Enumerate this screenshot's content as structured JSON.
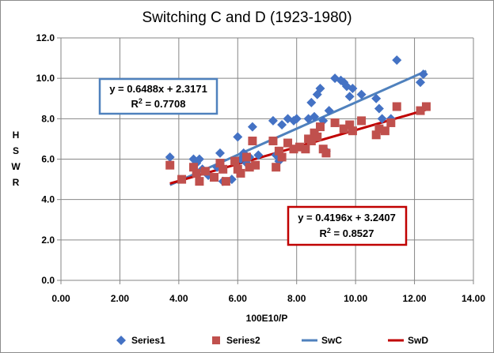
{
  "chart_data": {
    "type": "scatter",
    "title": "Switching C and D (1923-1980)",
    "xlabel": "100E10/P",
    "ylabel": "HSWR",
    "xlim": [
      0,
      14
    ],
    "ylim": [
      0,
      12
    ],
    "xticks": [
      "0.00",
      "2.00",
      "4.00",
      "6.00",
      "8.00",
      "10.00",
      "12.00",
      "14.00"
    ],
    "yticks": [
      "0.0",
      "2.0",
      "4.0",
      "6.0",
      "8.0",
      "10.0",
      "12.0"
    ],
    "grid": true,
    "legend_position": "bottom",
    "series": [
      {
        "name": "Series1",
        "marker": "diamond",
        "color": "#4472C4",
        "points": [
          [
            3.7,
            6.1
          ],
          [
            4.5,
            6.0
          ],
          [
            4.6,
            5.8
          ],
          [
            4.7,
            6.0
          ],
          [
            4.8,
            5.5
          ],
          [
            5.0,
            5.2
          ],
          [
            5.3,
            5.6
          ],
          [
            5.4,
            6.3
          ],
          [
            5.5,
            4.9
          ],
          [
            5.8,
            5.0
          ],
          [
            6.0,
            7.1
          ],
          [
            6.1,
            6.0
          ],
          [
            6.2,
            6.3
          ],
          [
            6.3,
            5.8
          ],
          [
            6.4,
            6.1
          ],
          [
            6.5,
            7.6
          ],
          [
            6.7,
            6.2
          ],
          [
            7.2,
            7.9
          ],
          [
            7.3,
            6.2
          ],
          [
            7.4,
            5.9
          ],
          [
            7.5,
            7.7
          ],
          [
            7.7,
            8.0
          ],
          [
            7.9,
            7.9
          ],
          [
            8.0,
            8.0
          ],
          [
            8.4,
            8.0
          ],
          [
            8.5,
            8.8
          ],
          [
            8.6,
            8.1
          ],
          [
            8.7,
            9.2
          ],
          [
            8.8,
            9.5
          ],
          [
            8.9,
            7.9
          ],
          [
            9.0,
            6.4
          ],
          [
            9.1,
            8.4
          ],
          [
            9.3,
            10.0
          ],
          [
            9.5,
            9.9
          ],
          [
            9.6,
            9.8
          ],
          [
            9.7,
            9.6
          ],
          [
            9.8,
            9.1
          ],
          [
            9.9,
            9.5
          ],
          [
            10.2,
            9.2
          ],
          [
            10.7,
            9.0
          ],
          [
            10.8,
            8.5
          ],
          [
            10.9,
            8.0
          ],
          [
            11.2,
            8.0
          ],
          [
            11.4,
            10.9
          ],
          [
            12.2,
            9.8
          ],
          [
            12.3,
            10.2
          ]
        ]
      },
      {
        "name": "Series2",
        "marker": "square",
        "color": "#C0504D",
        "points": [
          [
            3.7,
            5.7
          ],
          [
            4.1,
            5.0
          ],
          [
            4.5,
            5.6
          ],
          [
            4.6,
            5.3
          ],
          [
            4.7,
            4.9
          ],
          [
            4.9,
            5.4
          ],
          [
            5.2,
            5.1
          ],
          [
            5.4,
            5.8
          ],
          [
            5.5,
            5.5
          ],
          [
            5.6,
            4.9
          ],
          [
            5.9,
            5.9
          ],
          [
            6.0,
            5.5
          ],
          [
            6.1,
            5.3
          ],
          [
            6.3,
            6.1
          ],
          [
            6.4,
            5.6
          ],
          [
            6.5,
            6.9
          ],
          [
            6.6,
            5.7
          ],
          [
            7.2,
            6.9
          ],
          [
            7.3,
            5.6
          ],
          [
            7.4,
            6.4
          ],
          [
            7.5,
            6.1
          ],
          [
            7.7,
            6.8
          ],
          [
            7.9,
            6.5
          ],
          [
            8.1,
            6.6
          ],
          [
            8.3,
            6.5
          ],
          [
            8.4,
            7.0
          ],
          [
            8.5,
            6.9
          ],
          [
            8.6,
            7.3
          ],
          [
            8.7,
            7.1
          ],
          [
            8.8,
            7.6
          ],
          [
            8.9,
            6.5
          ],
          [
            9.0,
            6.3
          ],
          [
            9.3,
            7.8
          ],
          [
            9.6,
            7.5
          ],
          [
            9.8,
            7.7
          ],
          [
            9.9,
            7.4
          ],
          [
            10.2,
            7.9
          ],
          [
            10.7,
            7.2
          ],
          [
            10.8,
            7.5
          ],
          [
            11.0,
            7.4
          ],
          [
            11.2,
            7.8
          ],
          [
            11.4,
            8.6
          ],
          [
            12.2,
            8.4
          ],
          [
            12.4,
            8.6
          ]
        ]
      }
    ],
    "trendlines": [
      {
        "name": "SwC",
        "color": "#4F81BD",
        "slope": 0.6488,
        "intercept": 2.3171,
        "x_range": [
          3.7,
          12.4
        ],
        "equation": "y = 0.6488x + 2.3171",
        "r2_label": "R",
        "r2_sup": "2",
        "r2_value": " = 0.7708"
      },
      {
        "name": "SwD",
        "color": "#C00000",
        "slope": 0.4196,
        "intercept": 3.2407,
        "x_range": [
          3.7,
          12.4
        ],
        "equation": "y = 0.4196x + 3.2407",
        "r2_label": "R",
        "r2_sup": "2",
        "r2_value": " = 0.8527"
      }
    ]
  }
}
